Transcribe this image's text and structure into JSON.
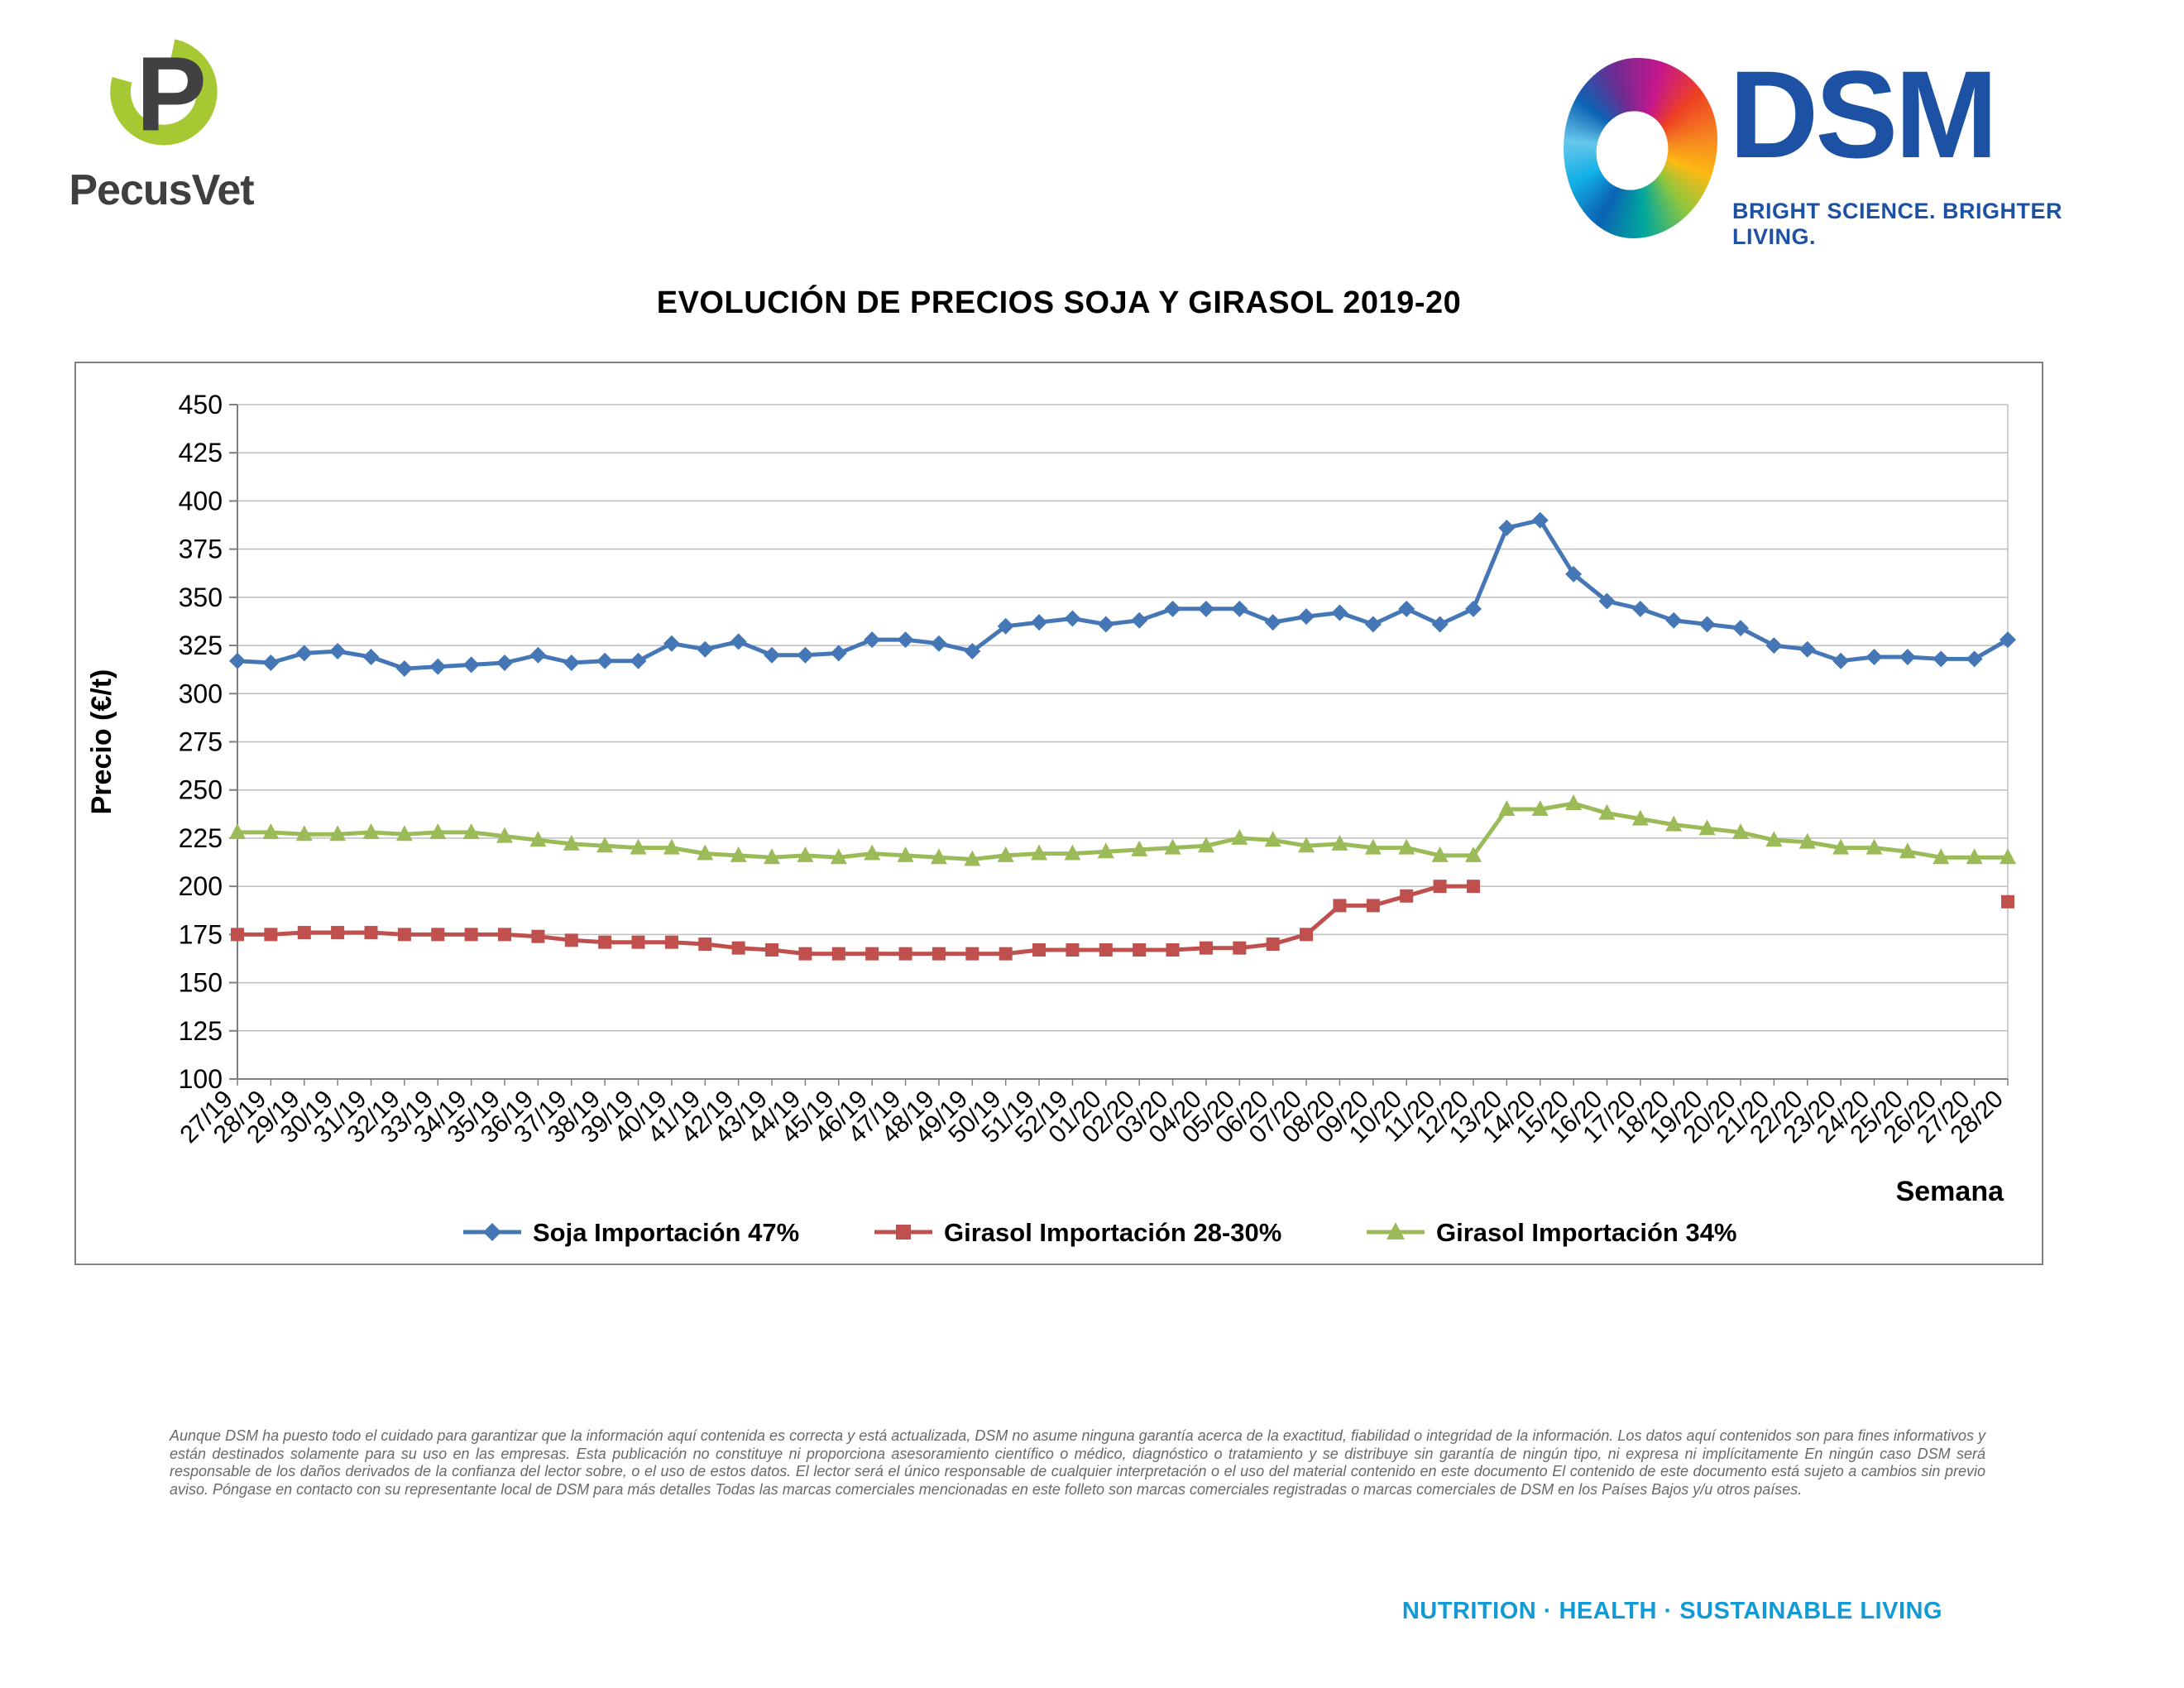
{
  "page": {
    "brand_left": {
      "name": "PecusVet",
      "mark_letter": "P"
    },
    "brand_right": {
      "name": "DSM",
      "tagline": "BRIGHT SCIENCE. BRIGHTER LIVING."
    },
    "footer_tagline": "NUTRITION · HEALTH · SUSTAINABLE LIVING",
    "disclaimer": "Aunque DSM ha puesto todo el cuidado para garantizar que la información aquí contenida es correcta y está actualizada, DSM no asume ninguna garantía acerca de la exactitud, fiabilidad o integridad de la información. Los datos aquí contenidos son para fines informativos y están destinados solamente para su uso en las empresas. Esta publicación no constituye ni proporciona asesoramiento científico o médico, diagnóstico o tratamiento y se distribuye sin garantía de ningún tipo, ni expresa ni implícitamente En ningún caso DSM será responsable de los daños derivados de la confianza del lector sobre, o el uso de estos datos. El lector será el único responsable de cualquier interpretación o el uso del material contenido en este documento El contenido de este documento está sujeto a cambios sin previo aviso. Póngase en contacto con su representante local de DSM para más detalles Todas las marcas comerciales mencionadas en este folleto son marcas comerciales registradas o marcas comerciales de DSM en los Países Bajos y/u otros países."
  },
  "chart_data": {
    "type": "line",
    "title": "EVOLUCIÓN DE PRECIOS SOJA Y GIRASOL 2019-20",
    "xlabel": "Semana",
    "ylabel": "Precio (€/t)",
    "ylim": [
      100,
      450
    ],
    "ytick_step": 25,
    "grid": true,
    "legend_position": "bottom",
    "categories": [
      "27/19",
      "28/19",
      "29/19",
      "30/19",
      "31/19",
      "32/19",
      "33/19",
      "34/19",
      "35/19",
      "36/19",
      "37/19",
      "38/19",
      "39/19",
      "40/19",
      "41/19",
      "42/19",
      "43/19",
      "44/19",
      "45/19",
      "46/19",
      "47/19",
      "48/19",
      "49/19",
      "50/19",
      "51/19",
      "52/19",
      "01/20",
      "02/20",
      "03/20",
      "04/20",
      "05/20",
      "06/20",
      "07/20",
      "08/20",
      "09/20",
      "10/20",
      "11/20",
      "12/20",
      "13/20",
      "14/20",
      "15/20",
      "16/20",
      "17/20",
      "18/20",
      "19/20",
      "20/20",
      "21/20",
      "22/20",
      "23/20",
      "24/20",
      "25/20",
      "26/20",
      "27/20",
      "28/20"
    ],
    "series": [
      {
        "name": "Soja Importación 47%",
        "color": "#4576b5",
        "marker": "diamond",
        "values": [
          317,
          316,
          321,
          322,
          319,
          313,
          314,
          315,
          316,
          320,
          316,
          317,
          317,
          326,
          323,
          327,
          320,
          320,
          321,
          328,
          328,
          326,
          322,
          335,
          337,
          339,
          336,
          338,
          344,
          344,
          344,
          337,
          340,
          342,
          336,
          344,
          336,
          344,
          386,
          390,
          362,
          348,
          344,
          338,
          336,
          334,
          325,
          323,
          317,
          319,
          319,
          318,
          318,
          328
        ]
      },
      {
        "name": "Girasol Importación 28-30%",
        "color": "#c0504d",
        "marker": "square",
        "values": [
          175,
          175,
          176,
          176,
          176,
          175,
          175,
          175,
          175,
          174,
          172,
          171,
          171,
          171,
          170,
          168,
          167,
          165,
          165,
          165,
          165,
          165,
          165,
          165,
          167,
          167,
          167,
          167,
          167,
          168,
          168,
          170,
          175,
          190,
          190,
          195,
          200,
          200,
          null,
          null,
          null,
          null,
          null,
          null,
          null,
          null,
          null,
          null,
          null,
          null,
          null,
          null,
          null,
          192
        ]
      },
      {
        "name": "Girasol Importación 34%",
        "color": "#9bbb59",
        "marker": "triangle",
        "values": [
          228,
          228,
          227,
          227,
          228,
          227,
          228,
          228,
          226,
          224,
          222,
          221,
          220,
          220,
          217,
          216,
          215,
          216,
          215,
          217,
          216,
          215,
          214,
          216,
          217,
          217,
          218,
          219,
          220,
          221,
          225,
          224,
          221,
          222,
          220,
          220,
          216,
          216,
          240,
          240,
          243,
          238,
          235,
          232,
          230,
          228,
          224,
          223,
          220,
          220,
          218,
          215,
          215,
          215
        ]
      }
    ]
  }
}
